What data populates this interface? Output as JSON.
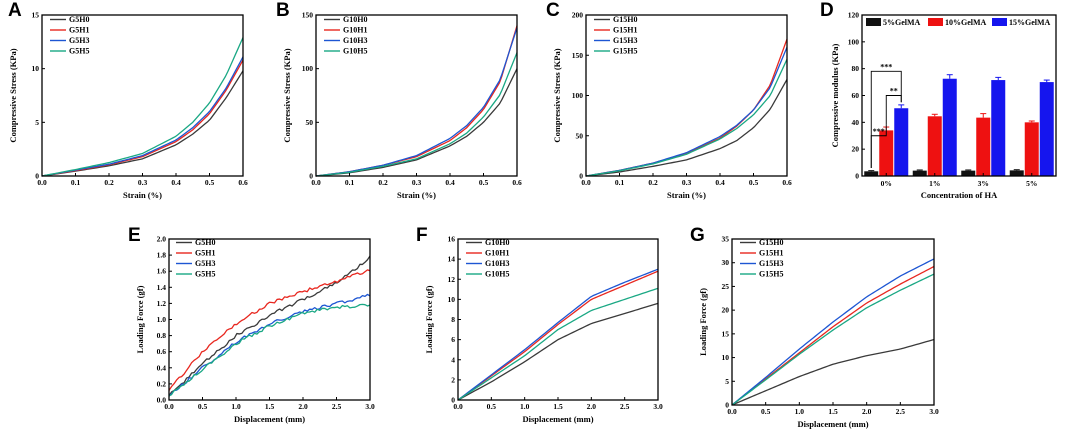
{
  "colors": {
    "black": "#3a3a3a",
    "red": "#e8271f",
    "blue": "#1d56d3",
    "green": "#1aa884",
    "barBlack": "#111111",
    "barRed": "#ee1111",
    "barBlue": "#1515ee"
  },
  "chart_data": [
    {
      "id": "A",
      "label": "A",
      "type": "line",
      "xlabel": "Strain (%)",
      "ylabel": "Compressive Stress (KPa)",
      "xlim": [
        0,
        0.6
      ],
      "ylim": [
        0,
        15
      ],
      "xticks": [
        0.0,
        0.1,
        0.2,
        0.3,
        0.4,
        0.5,
        0.6
      ],
      "yticks": [
        0,
        5,
        10,
        15
      ],
      "xtick_labels": [
        "0.0",
        "0.1",
        "0.2",
        "0.3",
        "0.4",
        "0.5",
        "0.6"
      ],
      "ytick_labels": [
        "0",
        "5",
        "10",
        "15"
      ],
      "legend": [
        "G5H0",
        "G5H1",
        "G5H3",
        "G5H5"
      ],
      "series": [
        {
          "name": "G5H0",
          "color": "#3a3a3a",
          "x": [
            0,
            0.1,
            0.2,
            0.3,
            0.4,
            0.45,
            0.5,
            0.55,
            0.6
          ],
          "y": [
            0,
            0.45,
            0.95,
            1.6,
            2.9,
            3.9,
            5.2,
            7.3,
            9.8
          ]
        },
        {
          "name": "G5H1",
          "color": "#e8271f",
          "x": [
            0,
            0.1,
            0.2,
            0.3,
            0.4,
            0.45,
            0.5,
            0.55,
            0.6
          ],
          "y": [
            0,
            0.5,
            1.05,
            1.8,
            3.2,
            4.3,
            5.8,
            8.0,
            10.8
          ]
        },
        {
          "name": "G5H3",
          "color": "#1d56d3",
          "x": [
            0,
            0.1,
            0.2,
            0.3,
            0.4,
            0.45,
            0.5,
            0.55,
            0.6
          ],
          "y": [
            0,
            0.55,
            1.1,
            1.9,
            3.35,
            4.5,
            6.0,
            8.2,
            11.1
          ]
        },
        {
          "name": "G5H5",
          "color": "#1aa884",
          "x": [
            0,
            0.1,
            0.2,
            0.3,
            0.4,
            0.45,
            0.5,
            0.55,
            0.6
          ],
          "y": [
            0,
            0.6,
            1.25,
            2.1,
            3.7,
            5.0,
            6.8,
            9.4,
            12.9
          ]
        }
      ]
    },
    {
      "id": "B",
      "label": "B",
      "type": "line",
      "xlabel": "Strain (%)",
      "ylabel": "Compressive Stress (KPa)",
      "xlim": [
        0,
        0.6
      ],
      "ylim": [
        0,
        150
      ],
      "xticks": [
        0.0,
        0.1,
        0.2,
        0.3,
        0.4,
        0.5,
        0.6
      ],
      "yticks": [
        0,
        50,
        100,
        150
      ],
      "xtick_labels": [
        "0.0",
        "0.1",
        "0.2",
        "0.3",
        "0.4",
        "0.5",
        "0.6"
      ],
      "ytick_labels": [
        "0",
        "50",
        "100",
        "150"
      ],
      "legend": [
        "G10H0",
        "G10H1",
        "G10H3",
        "G10H5"
      ],
      "series": [
        {
          "name": "G10H0",
          "color": "#3a3a3a",
          "x": [
            0,
            0.1,
            0.2,
            0.3,
            0.4,
            0.45,
            0.5,
            0.55,
            0.6
          ],
          "y": [
            0,
            3,
            8,
            15,
            28,
            37,
            50,
            68,
            100
          ]
        },
        {
          "name": "G10H1",
          "color": "#e8271f",
          "x": [
            0,
            0.1,
            0.2,
            0.3,
            0.4,
            0.45,
            0.5,
            0.55,
            0.6
          ],
          "y": [
            0,
            4,
            10,
            18,
            33,
            45,
            62,
            88,
            140
          ]
        },
        {
          "name": "G10H3",
          "color": "#1d56d3",
          "x": [
            0,
            0.1,
            0.2,
            0.3,
            0.4,
            0.45,
            0.5,
            0.55,
            0.6
          ],
          "y": [
            0,
            4,
            10,
            19,
            35,
            47,
            64,
            90,
            138
          ]
        },
        {
          "name": "G10H5",
          "color": "#1aa884",
          "x": [
            0,
            0.1,
            0.2,
            0.3,
            0.4,
            0.45,
            0.5,
            0.55,
            0.6
          ],
          "y": [
            0,
            3.5,
            9,
            16,
            30,
            40,
            55,
            76,
            115
          ]
        }
      ]
    },
    {
      "id": "C",
      "label": "C",
      "type": "line",
      "xlabel": "Strain (%)",
      "ylabel": "Compressive Stress (KPa)",
      "xlim": [
        0,
        0.6
      ],
      "ylim": [
        0,
        200
      ],
      "xticks": [
        0.0,
        0.1,
        0.2,
        0.3,
        0.4,
        0.5,
        0.6
      ],
      "yticks": [
        0,
        50,
        100,
        150,
        200
      ],
      "xtick_labels": [
        "0.0",
        "0.1",
        "0.2",
        "0.3",
        "0.4",
        "0.5",
        "0.6"
      ],
      "ytick_labels": [
        "0",
        "50",
        "100",
        "150",
        "200"
      ],
      "legend": [
        "G15H0",
        "G15H1",
        "G15H3",
        "G15H5"
      ],
      "series": [
        {
          "name": "G15H0",
          "color": "#3a3a3a",
          "x": [
            0,
            0.1,
            0.2,
            0.3,
            0.4,
            0.45,
            0.5,
            0.55,
            0.6
          ],
          "y": [
            0,
            5,
            12,
            20,
            34,
            44,
            60,
            83,
            120
          ]
        },
        {
          "name": "G15H1",
          "color": "#e8271f",
          "x": [
            0,
            0.1,
            0.2,
            0.3,
            0.4,
            0.45,
            0.5,
            0.55,
            0.6
          ],
          "y": [
            0,
            7,
            16,
            28,
            47,
            62,
            82,
            113,
            170
          ]
        },
        {
          "name": "G15H3",
          "color": "#1d56d3",
          "x": [
            0,
            0.1,
            0.2,
            0.3,
            0.4,
            0.45,
            0.5,
            0.55,
            0.6
          ],
          "y": [
            0,
            7,
            16,
            29,
            49,
            63,
            82,
            110,
            160
          ]
        },
        {
          "name": "G15H5",
          "color": "#1aa884",
          "x": [
            0,
            0.1,
            0.2,
            0.3,
            0.4,
            0.45,
            0.5,
            0.55,
            0.6
          ],
          "y": [
            0,
            6.5,
            15,
            27,
            46,
            59,
            76,
            100,
            145
          ]
        }
      ]
    },
    {
      "id": "D",
      "label": "D",
      "type": "bar",
      "xlabel": "Concentration of HA",
      "ylabel": "Compressive modulus (KPa)",
      "ylim": [
        0,
        120
      ],
      "yticks": [
        0,
        20,
        40,
        60,
        80,
        100,
        120
      ],
      "ytick_labels": [
        "0",
        "20",
        "40",
        "60",
        "80",
        "100",
        "120"
      ],
      "categories": [
        "0%",
        "1%",
        "3%",
        "5%"
      ],
      "legend": [
        "5%GelMA",
        "10%GelMA",
        "15%GelMA"
      ],
      "series": [
        {
          "name": "5%GelMA",
          "color": "#111111",
          "values": [
            3.5,
            4.0,
            4.0,
            4.2
          ],
          "errors": [
            0.5,
            0.5,
            0.5,
            0.5
          ]
        },
        {
          "name": "10%GelMA",
          "color": "#ee1111",
          "values": [
            34,
            44.5,
            43.5,
            40
          ],
          "errors": [
            2.5,
            1.5,
            3,
            1
          ]
        },
        {
          "name": "15%GelMA",
          "color": "#1515ee",
          "values": [
            50.5,
            72.5,
            71.5,
            70
          ],
          "errors": [
            2.5,
            3,
            2,
            1.5
          ]
        }
      ],
      "significance": [
        {
          "label": "***",
          "between": [
            "5%GelMA",
            "10%GelMA"
          ],
          "category": "0%"
        },
        {
          "label": "**",
          "between": [
            "10%GelMA",
            "15%GelMA"
          ],
          "category": "0%"
        },
        {
          "label": "***",
          "between": [
            "5%GelMA",
            "15%GelMA"
          ],
          "category": "0%"
        }
      ]
    },
    {
      "id": "E",
      "label": "E",
      "type": "line",
      "xlabel": "Displacement (mm)",
      "ylabel": "Loading Force (gf)",
      "xlim": [
        0,
        3.0
      ],
      "ylim": [
        0,
        2.0
      ],
      "xticks": [
        0,
        0.5,
        1.0,
        1.5,
        2.0,
        2.5,
        3.0
      ],
      "yticks": [
        0,
        0.2,
        0.4,
        0.6,
        0.8,
        1.0,
        1.2,
        1.4,
        1.6,
        1.8,
        2.0
      ],
      "xtick_labels": [
        "0.0",
        "0.5",
        "1.0",
        "1.5",
        "2.0",
        "2.5",
        "3.0"
      ],
      "ytick_labels": [
        "0.0",
        "0.2",
        "0.4",
        "0.6",
        "0.8",
        "1.0",
        "1.2",
        "1.4",
        "1.6",
        "1.8",
        "2.0"
      ],
      "legend": [
        "G5H0",
        "G5H1",
        "G5H3",
        "G5H5"
      ],
      "noisy": true,
      "series": [
        {
          "name": "G5H0",
          "color": "#3a3a3a",
          "x": [
            0,
            0.5,
            1.0,
            1.5,
            2.0,
            2.5,
            3.0
          ],
          "y": [
            0.05,
            0.45,
            0.8,
            1.05,
            1.25,
            1.45,
            1.77
          ]
        },
        {
          "name": "G5H1",
          "color": "#e8271f",
          "x": [
            0,
            0.5,
            1.0,
            1.5,
            2.0,
            2.5,
            3.0
          ],
          "y": [
            0.12,
            0.6,
            0.95,
            1.2,
            1.35,
            1.47,
            1.62
          ]
        },
        {
          "name": "G5H3",
          "color": "#1d56d3",
          "x": [
            0,
            0.5,
            1.0,
            1.5,
            2.0,
            2.5,
            3.0
          ],
          "y": [
            0.05,
            0.4,
            0.72,
            0.95,
            1.1,
            1.2,
            1.3
          ]
        },
        {
          "name": "G5H5",
          "color": "#1aa884",
          "x": [
            0,
            0.5,
            1.0,
            1.5,
            2.0,
            2.5,
            3.0
          ],
          "y": [
            0.05,
            0.38,
            0.7,
            0.92,
            1.08,
            1.15,
            1.18
          ]
        }
      ]
    },
    {
      "id": "F",
      "label": "F",
      "type": "line",
      "xlabel": "Displacement (mm)",
      "ylabel": "Loading Force (gf)",
      "xlim": [
        0,
        3.0
      ],
      "ylim": [
        0,
        16
      ],
      "xticks": [
        0,
        0.5,
        1.0,
        1.5,
        2.0,
        2.5,
        3.0
      ],
      "yticks": [
        0,
        2,
        4,
        6,
        8,
        10,
        12,
        14,
        16
      ],
      "xtick_labels": [
        "0.0",
        "0.5",
        "1.0",
        "1.5",
        "2.0",
        "2.5",
        "3.0"
      ],
      "ytick_labels": [
        "0",
        "2",
        "4",
        "6",
        "8",
        "10",
        "12",
        "14",
        "16"
      ],
      "legend": [
        "G10H0",
        "G10H1",
        "G10H3",
        "G10H5"
      ],
      "series": [
        {
          "name": "G10H0",
          "color": "#3a3a3a",
          "x": [
            0,
            0.5,
            1.0,
            1.5,
            2.0,
            2.5,
            3.0
          ],
          "y": [
            0,
            1.8,
            3.8,
            6.0,
            7.6,
            8.6,
            9.6
          ]
        },
        {
          "name": "G10H1",
          "color": "#e8271f",
          "x": [
            0,
            0.5,
            1.0,
            1.5,
            2.0,
            2.5,
            3.0
          ],
          "y": [
            0,
            2.4,
            4.8,
            7.5,
            10.0,
            11.4,
            12.8
          ]
        },
        {
          "name": "G10H3",
          "color": "#1d56d3",
          "x": [
            0,
            0.5,
            1.0,
            1.5,
            2.0,
            2.5,
            3.0
          ],
          "y": [
            0,
            2.5,
            5.0,
            7.7,
            10.3,
            11.7,
            13.0
          ]
        },
        {
          "name": "G10H5",
          "color": "#1aa884",
          "x": [
            0,
            0.5,
            1.0,
            1.5,
            2.0,
            2.5,
            3.0
          ],
          "y": [
            0,
            2.2,
            4.4,
            7.0,
            8.9,
            10.0,
            11.1
          ]
        }
      ]
    },
    {
      "id": "G",
      "label": "G",
      "type": "line",
      "xlabel": "Displacement (mm)",
      "ylabel": "Loading Force (gf)",
      "xlim": [
        0,
        3.0
      ],
      "ylim": [
        0,
        35
      ],
      "xticks": [
        0,
        0.5,
        1.0,
        1.5,
        2.0,
        2.5,
        3.0
      ],
      "yticks": [
        0,
        5,
        10,
        15,
        20,
        25,
        30,
        35
      ],
      "xtick_labels": [
        "0.0",
        "0.5",
        "1.0",
        "1.5",
        "2.0",
        "2.5",
        "3.0"
      ],
      "ytick_labels": [
        "0",
        "5",
        "10",
        "15",
        "20",
        "25",
        "30",
        "35"
      ],
      "legend": [
        "G15H0",
        "G15H1",
        "G15H3",
        "G15H5"
      ],
      "series": [
        {
          "name": "G15H0",
          "color": "#3a3a3a",
          "x": [
            0,
            0.5,
            1.0,
            1.5,
            2.0,
            2.5,
            3.0
          ],
          "y": [
            0,
            3.0,
            6.0,
            8.6,
            10.4,
            11.8,
            13.8
          ]
        },
        {
          "name": "G15H1",
          "color": "#e8271f",
          "x": [
            0,
            0.5,
            1.0,
            1.5,
            2.0,
            2.5,
            3.0
          ],
          "y": [
            0,
            5.5,
            11.0,
            16.5,
            21.5,
            25.5,
            29.2
          ]
        },
        {
          "name": "G15H3",
          "color": "#1d56d3",
          "x": [
            0,
            0.5,
            1.0,
            1.5,
            2.0,
            2.5,
            3.0
          ],
          "y": [
            0,
            5.8,
            11.8,
            17.5,
            22.8,
            27.2,
            30.8
          ]
        },
        {
          "name": "G15H5",
          "color": "#1aa884",
          "x": [
            0,
            0.5,
            1.0,
            1.5,
            2.0,
            2.5,
            3.0
          ],
          "y": [
            0,
            5.3,
            10.7,
            15.8,
            20.5,
            24.2,
            27.6
          ]
        }
      ]
    }
  ]
}
